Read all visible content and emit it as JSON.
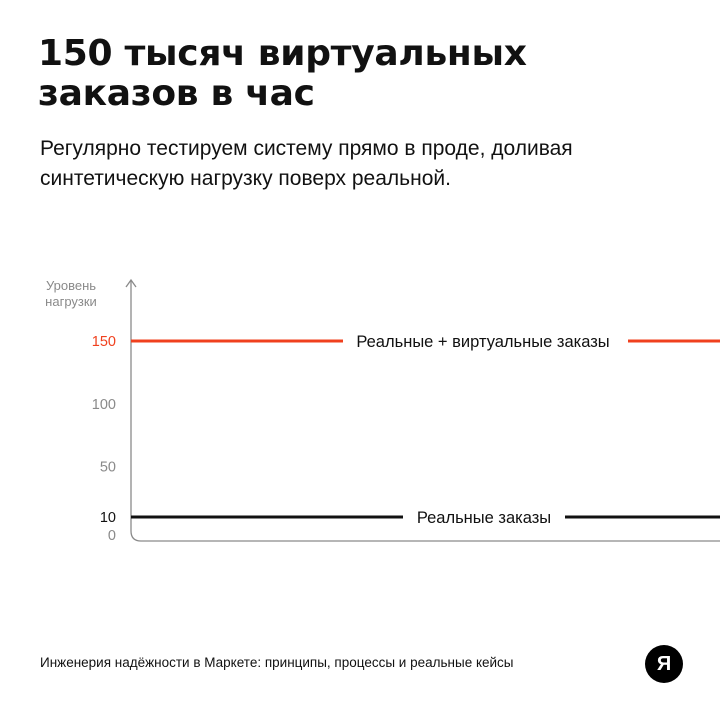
{
  "header": {
    "title": "150 тысяч виртуальных заказов в час",
    "subtitle": "Регулярно тестируем систему прямо в проде, доливая синтетическую нагрузку поверх реальной."
  },
  "footer": {
    "text": "Инженерия надёжности в Маркете: принципы, процессы и реальные кейсы",
    "logo_glyph": "Я"
  },
  "colors": {
    "accent": "#f0401e",
    "line_dark": "#111111",
    "axis": "#8a8a8a",
    "tick_muted": "#8a8a8a"
  },
  "chart_data": {
    "type": "line",
    "ylabel": "Уровень нагрузки",
    "ylim": [
      0,
      165
    ],
    "y_ticks": [
      {
        "value": 150,
        "label": "150",
        "highlight": "accent"
      },
      {
        "value": 100,
        "label": "100"
      },
      {
        "value": 50,
        "label": "50"
      },
      {
        "value": 10,
        "label": "10",
        "highlight": "dark"
      },
      {
        "value": 0,
        "label": "0"
      }
    ],
    "series": [
      {
        "name": "Реальные + виртуальные заказы",
        "value": 150,
        "color": "#f0401e"
      },
      {
        "name": "Реальные заказы",
        "value": 10,
        "color": "#111111"
      }
    ],
    "grid": false,
    "legend": "inline-on-lines"
  }
}
